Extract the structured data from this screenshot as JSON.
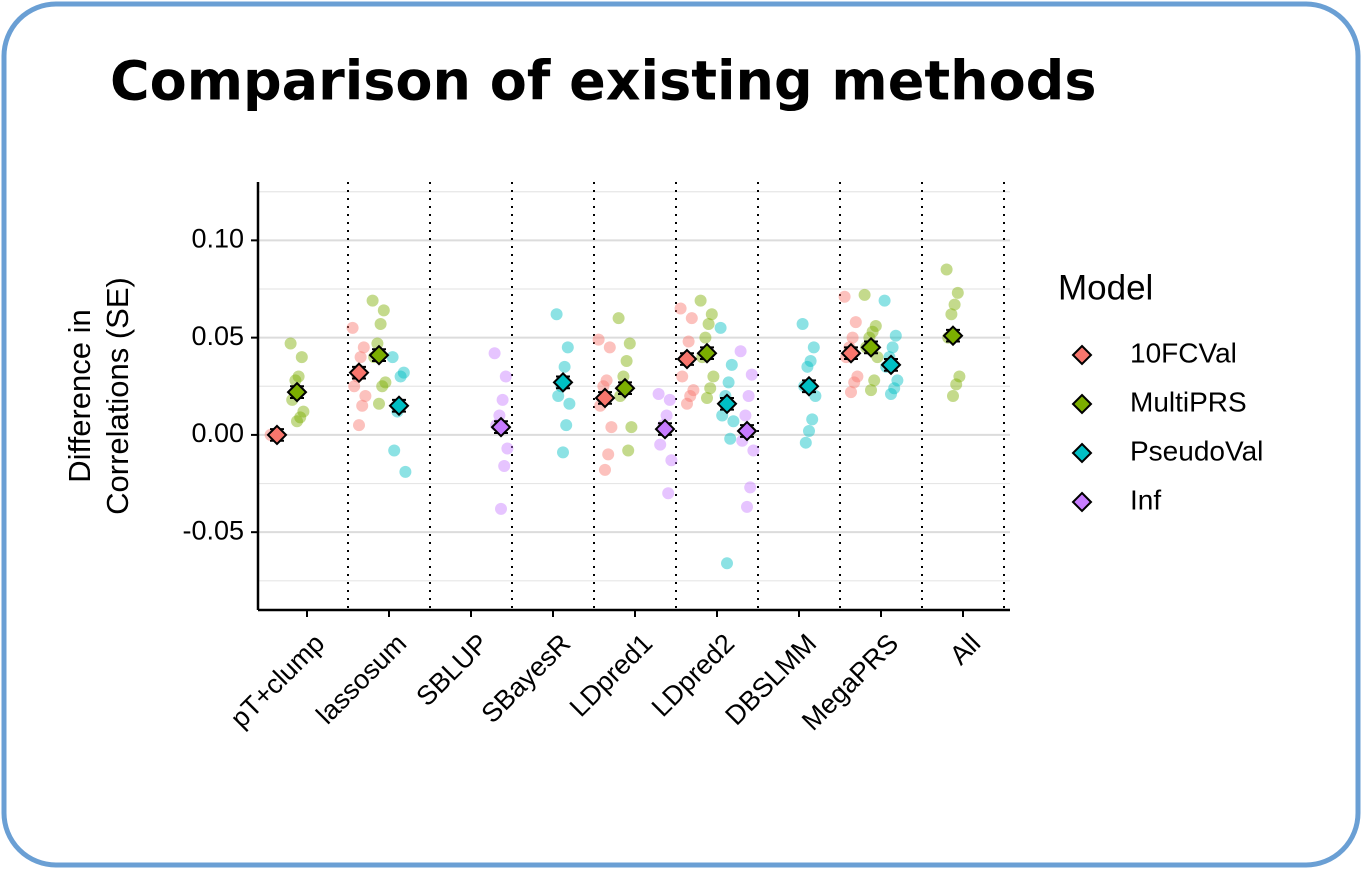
{
  "chart_data": {
    "type": "dot",
    "title": "Comparison of existing methods",
    "ylabel_lines": [
      "Difference in",
      "Correlations (SE)"
    ],
    "legend_title": "Model",
    "categories": [
      "pT+clump",
      "lassosum",
      "SBLUP",
      "SBayesR",
      "LDpred1",
      "LDpred2",
      "DBSLMM",
      "MegaPRS",
      "All"
    ],
    "ylim": [
      -0.09,
      0.13
    ],
    "yticks": [
      {
        "value": -0.05,
        "label": "-0.05"
      },
      {
        "value": 0,
        "label": "0.00"
      },
      {
        "value": 0.05,
        "label": "0.05"
      },
      {
        "value": 0.1,
        "label": "0.10"
      }
    ],
    "minor_yticks": [
      -0.075,
      -0.025,
      0.025,
      0.075,
      0.125
    ],
    "grid": true,
    "series": [
      {
        "name": "10FCVal",
        "color": "#F8766D",
        "values": [
          0.0,
          0.032,
          null,
          null,
          0.019,
          0.039,
          null,
          0.042,
          null
        ],
        "errors": [
          0.003,
          0.003,
          null,
          null,
          0.003,
          0.003,
          null,
          0.003,
          null
        ],
        "points": [
          [
            0.0
          ],
          [
            0.055,
            0.045,
            0.04,
            0.03,
            0.025,
            0.02,
            0.015,
            0.005
          ],
          null,
          null,
          [
            0.049,
            0.045,
            0.028,
            0.025,
            0.015,
            0.004,
            -0.01,
            -0.018
          ],
          [
            0.065,
            0.06,
            0.048,
            0.04,
            0.03,
            0.023,
            0.02,
            0.016
          ],
          null,
          [
            0.071,
            0.058,
            0.05,
            0.045,
            0.04,
            0.03,
            0.027,
            0.022
          ],
          null
        ]
      },
      {
        "name": "MultiPRS",
        "color": "#7CAE00",
        "values": [
          0.022,
          0.041,
          null,
          null,
          0.024,
          0.042,
          null,
          0.045,
          0.051
        ],
        "errors": [
          0.003,
          0.003,
          null,
          null,
          0.003,
          0.003,
          null,
          0.003,
          0.003
        ],
        "points": [
          [
            0.047,
            0.04,
            0.03,
            0.028,
            0.018,
            0.012,
            0.009,
            0.007
          ],
          [
            0.069,
            0.064,
            0.057,
            0.047,
            0.04,
            0.027,
            0.025,
            0.016
          ],
          null,
          null,
          [
            0.06,
            0.047,
            0.038,
            0.03,
            0.02,
            0.004,
            -0.008
          ],
          [
            0.069,
            0.062,
            0.057,
            0.05,
            0.04,
            0.03,
            0.024,
            0.019
          ],
          null,
          [
            0.072,
            0.056,
            0.053,
            0.05,
            0.045,
            0.04,
            0.028,
            0.023
          ],
          [
            0.085,
            0.073,
            0.067,
            0.062,
            0.05,
            0.03,
            0.026,
            0.02
          ]
        ]
      },
      {
        "name": "PseudoVal",
        "color": "#00BFC4",
        "values": [
          null,
          0.015,
          null,
          0.027,
          null,
          0.016,
          0.025,
          0.036,
          null
        ],
        "errors": [
          null,
          0.003,
          null,
          0.003,
          null,
          0.003,
          0.003,
          0.003,
          null
        ],
        "points": [
          null,
          [
            0.04,
            0.032,
            0.03,
            0.012,
            -0.008,
            -0.019
          ],
          null,
          [
            0.062,
            0.045,
            0.035,
            0.025,
            0.02,
            0.016,
            0.005,
            -0.009
          ],
          null,
          [
            0.055,
            0.036,
            0.027,
            0.02,
            0.01,
            0.007,
            -0.002,
            -0.066
          ],
          [
            0.057,
            0.045,
            0.038,
            0.035,
            0.025,
            0.02,
            0.008,
            0.002,
            -0.004
          ],
          [
            0.069,
            0.051,
            0.045,
            0.04,
            0.035,
            0.028,
            0.024,
            0.021
          ],
          null
        ]
      },
      {
        "name": "Inf",
        "color": "#C77CFF",
        "values": [
          null,
          null,
          0.004,
          null,
          0.003,
          0.002,
          null,
          null,
          null
        ],
        "errors": [
          null,
          null,
          0.003,
          null,
          0.003,
          0.003,
          null,
          null,
          null
        ],
        "points": [
          null,
          null,
          [
            0.042,
            0.03,
            0.018,
            0.01,
            0.005,
            -0.007,
            -0.016,
            -0.038
          ],
          null,
          [
            0.021,
            0.018,
            0.01,
            0.005,
            -0.005,
            -0.013,
            -0.03
          ],
          [
            0.043,
            0.031,
            0.02,
            0.01,
            -0.003,
            -0.008,
            -0.027,
            -0.037
          ],
          null,
          null,
          null
        ]
      }
    ]
  }
}
